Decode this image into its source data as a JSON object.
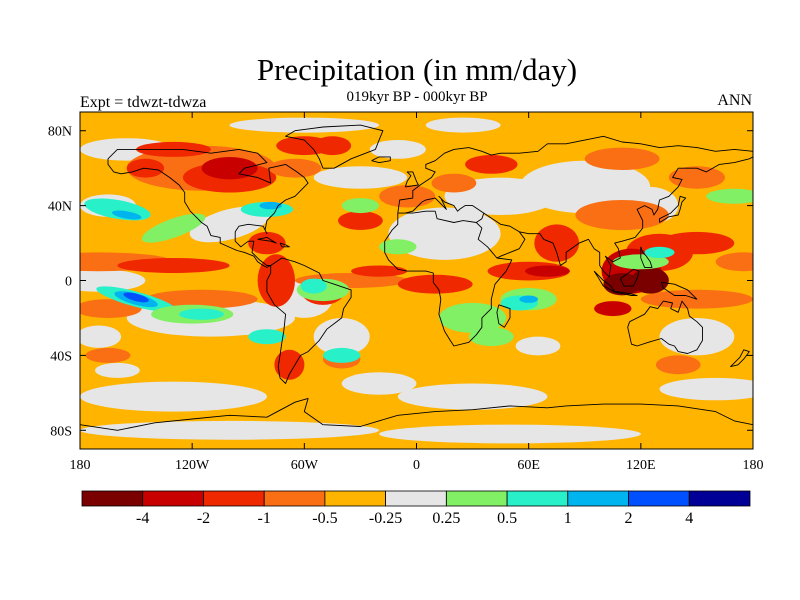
{
  "title": "Precipitation (in mm/day)",
  "subtitle": "019kyr BP - 000kyr BP",
  "left_label": "Expt = tdwzt-tdwza",
  "right_label": "ANN",
  "lat_ticks": [
    {
      "value": 80,
      "label": "80N"
    },
    {
      "value": 40,
      "label": "40N"
    },
    {
      "value": 0,
      "label": "0"
    },
    {
      "value": -40,
      "label": "40S"
    },
    {
      "value": -80,
      "label": "80S"
    }
  ],
  "lon_ticks": [
    {
      "value": -180,
      "label": "180"
    },
    {
      "value": -120,
      "label": "120W"
    },
    {
      "value": -60,
      "label": "60W"
    },
    {
      "value": 0,
      "label": "0"
    },
    {
      "value": 60,
      "label": "60E"
    },
    {
      "value": 120,
      "label": "120E"
    },
    {
      "value": 180,
      "label": "180"
    }
  ],
  "colorbar": {
    "colors": [
      "#7a0000",
      "#c80000",
      "#f02800",
      "#fa6e14",
      "#ffb400",
      "#e6e6e6",
      "#82f064",
      "#28f0c8",
      "#00b4f0",
      "#0050ff",
      "#000096"
    ],
    "labels": [
      "-4",
      "-2",
      "-1",
      "-0.5",
      "-0.25",
      "0.25",
      "0.5",
      "1",
      "2",
      "4"
    ]
  },
  "map_colors": {
    "ocean_background": "#ffb400",
    "land_neutral": "#e6e6e6",
    "coast": "#000000"
  }
}
